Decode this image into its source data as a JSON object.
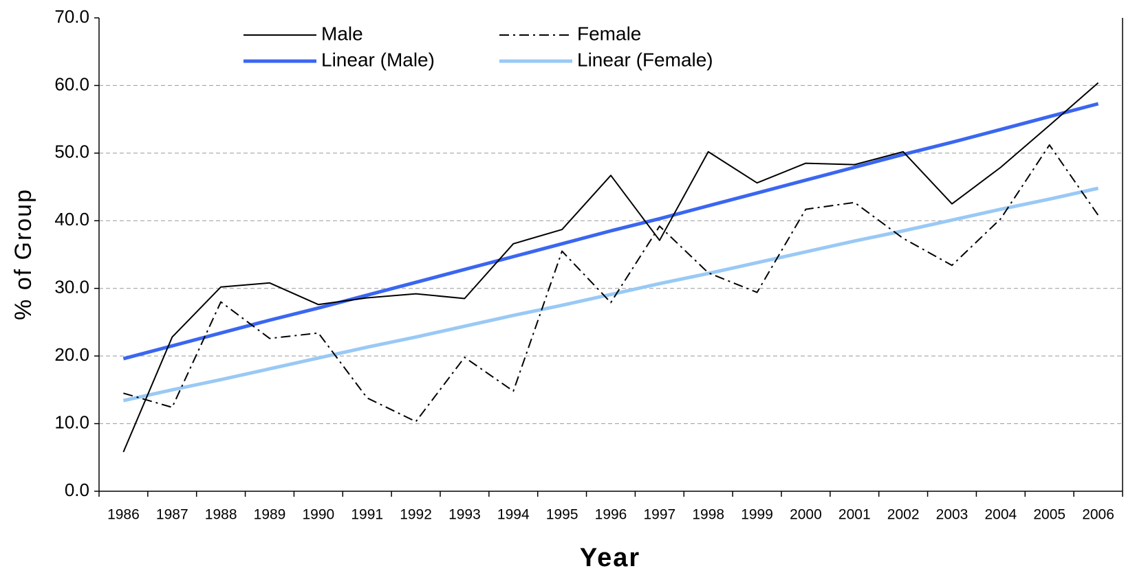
{
  "chart_data": {
    "type": "line",
    "xlabel": "Year",
    "ylabel": "% of Group",
    "categories": [
      "1986",
      "1987",
      "1988",
      "1989",
      "1990",
      "1991",
      "1992",
      "1993",
      "1994",
      "1995",
      "1996",
      "1997",
      "1998",
      "1999",
      "2000",
      "2001",
      "2002",
      "2003",
      "2004",
      "2005",
      "2006"
    ],
    "series": [
      {
        "name": "Male",
        "color": "#000000",
        "width": 2,
        "dash": "solid",
        "values": [
          5.8,
          22.8,
          30.2,
          30.8,
          27.6,
          28.6,
          29.2,
          28.5,
          36.6,
          38.7,
          46.7,
          37.1,
          50.2,
          45.6,
          48.5,
          48.3,
          50.2,
          42.5,
          47.9,
          54.1,
          60.4
        ]
      },
      {
        "name": "Female",
        "color": "#000000",
        "width": 2,
        "dash": "dashdot",
        "values": [
          14.5,
          12.4,
          28.0,
          22.6,
          23.4,
          13.8,
          10.3,
          19.8,
          14.8,
          35.5,
          27.9,
          39.2,
          32.3,
          29.4,
          41.7,
          42.7,
          37.4,
          33.4,
          40.3,
          51.2,
          40.8
        ]
      },
      {
        "name": "Linear (Male)",
        "color": "#3a66f0",
        "width": 5,
        "dash": "solid",
        "values": [
          19.6,
          21.5,
          23.4,
          25.3,
          27.1,
          29.0,
          30.9,
          32.8,
          34.7,
          36.6,
          38.5,
          40.3,
          42.2,
          44.1,
          46.0,
          47.9,
          49.8,
          51.6,
          53.5,
          55.4,
          57.3
        ]
      },
      {
        "name": "Linear (Female)",
        "color": "#99c9f5",
        "width": 5,
        "dash": "solid",
        "values": [
          13.4,
          15.0,
          16.5,
          18.1,
          19.7,
          21.3,
          22.8,
          24.4,
          26.0,
          27.5,
          29.1,
          30.7,
          32.2,
          33.8,
          35.4,
          37.0,
          38.5,
          40.1,
          41.7,
          43.2,
          44.8
        ]
      }
    ],
    "ylim": [
      0,
      70
    ],
    "yticks": [
      {
        "value": 0,
        "label": "0.0"
      },
      {
        "value": 10,
        "label": "10.0"
      },
      {
        "value": 20,
        "label": "20.0"
      },
      {
        "value": 30,
        "label": "30.0"
      },
      {
        "value": 40,
        "label": "40.0"
      },
      {
        "value": 50,
        "label": "50.0"
      },
      {
        "value": 60,
        "label": "60.0"
      },
      {
        "value": 70,
        "label": "70.0"
      }
    ],
    "grid": true,
    "legend": "top"
  }
}
